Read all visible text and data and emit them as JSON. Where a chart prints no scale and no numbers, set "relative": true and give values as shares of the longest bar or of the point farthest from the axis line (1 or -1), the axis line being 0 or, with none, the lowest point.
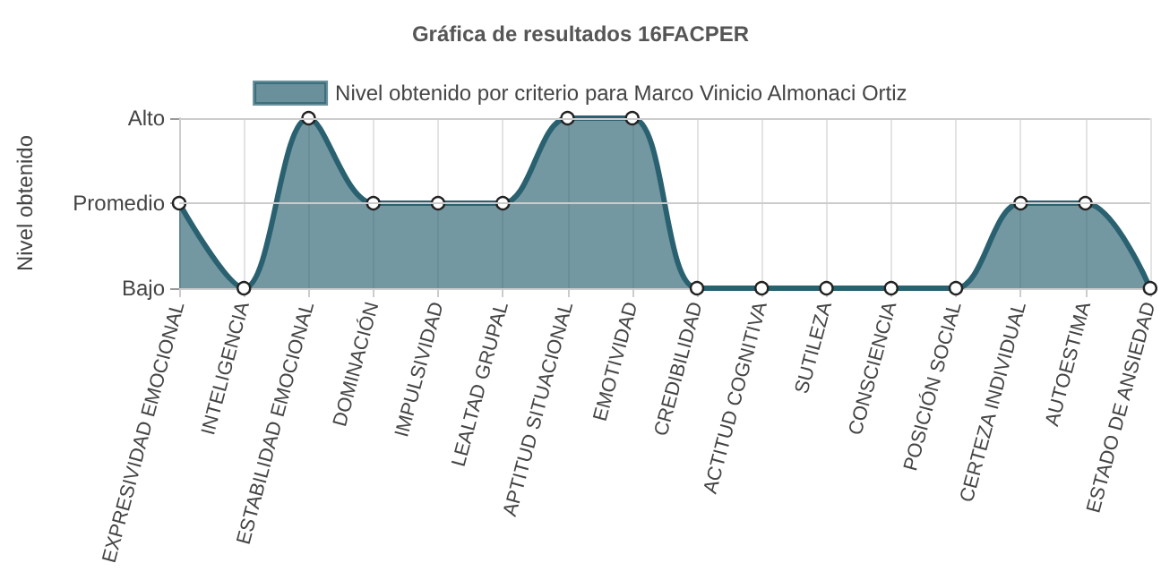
{
  "chart_data": {
    "type": "area",
    "title": "Gráfica de resultados 16FACPER",
    "ylabel": "Nivel obtenido",
    "categories": [
      "EXPRESIVIDAD EMOCIONAL",
      "INTELIGENCIA",
      "ESTABILIDAD EMOCIONAL",
      "DOMINACIÓN",
      "IMPULSIVIDAD",
      "LEALTAD GRUPAL",
      "APTITUD SITUACIONAL",
      "EMOTIVIDAD",
      "CREDIBILIDAD",
      "ACTITUD COGNITIVA",
      "SUTILEZA",
      "CONSCIENCIA",
      "POSICIÓN SOCIAL",
      "CERTEZA INDIVIDUAL",
      "AUTOESTIMA",
      "ESTADO DE ANSIEDAD"
    ],
    "series": [
      {
        "name": "Nivel obtenido por criterio para Marco Vinicio Almonaci Ortiz",
        "color": "#2a6170",
        "values": [
          0.5,
          0,
          1,
          0.5,
          0.5,
          0.5,
          1,
          1,
          0,
          0,
          0,
          0,
          0,
          0.5,
          0.5,
          0
        ]
      }
    ],
    "relative": true,
    "y_categories": [
      "Alto",
      "Promedio",
      "Bajo"
    ],
    "ref_lines": [
      {
        "axis": "y",
        "value": 0.5,
        "color": "#cccccc"
      },
      {
        "axis": "y",
        "value": 1,
        "color": "#cccccc"
      }
    ],
    "grid": "x",
    "legend": "top",
    "marker": "circle"
  }
}
